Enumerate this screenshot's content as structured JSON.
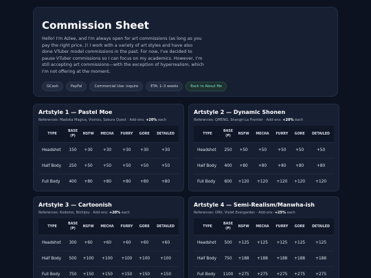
{
  "header": {
    "title": "Commission Sheet",
    "intro": "Hello! I'm Azlee, and I'm always open for art commissions (as long as you pay the right price..)! I work with a variety of art styles and have also done VTuber model commissions in the past. For now, I've decided to pause VTuber commissions so I can focus on my academics. However, I'm still accepting art commissions—with the exception of hyperrealism, which I'm not offering at the moment.",
    "tags": [
      "GCash",
      "PayPal",
      "Commercial Use: inquire",
      "ETA: 1–3 weeks"
    ],
    "back_link": "Back to About Me"
  },
  "table_columns": [
    "TYPE",
    "BASE (₱)",
    "NSFW",
    "MECHA",
    "FURRY",
    "GORE",
    "DETAILED"
  ],
  "cards": [
    {
      "title": "Artstyle 1 — Pastel Moe",
      "references": "References: Madoka Magica, Vivinos, Sakura Quest · Add-ons:",
      "addon": "+20%",
      "addon_note": "each",
      "rows": [
        [
          "Headshot",
          "150",
          "+30",
          "+30",
          "+30",
          "+30",
          "+30"
        ],
        [
          "Half Body",
          "250",
          "+50",
          "+50",
          "+50",
          "+50",
          "+50"
        ],
        [
          "Full Body",
          "400",
          "+80",
          "+80",
          "+80",
          "+80",
          "+80"
        ]
      ]
    },
    {
      "title": "Artstyle 2 — Dynamic Shonen",
      "references": "References: QMENG, Shangri-La Frontier · Add-ons:",
      "addon": "+20%",
      "addon_note": "each",
      "rows": [
        [
          "Headshot",
          "250",
          "+50",
          "+50",
          "+50",
          "+50",
          "+50"
        ],
        [
          "Half Body",
          "400",
          "+80",
          "+80",
          "+80",
          "+80",
          "+80"
        ],
        [
          "Full Body",
          "600",
          "+120",
          "+120",
          "+120",
          "+120",
          "+120"
        ]
      ]
    },
    {
      "title": "Artstyle 3 — Cartoonish",
      "references": "References: Kodomo, Nichijou · Add-ons:",
      "addon": "+20%",
      "addon_note": "each",
      "rows": [
        [
          "Headshot",
          "300",
          "+60",
          "+60",
          "+60",
          "+60",
          "+60"
        ],
        [
          "Half Body",
          "500",
          "+100",
          "+100",
          "+100",
          "+100",
          "+100"
        ],
        [
          "Full Body",
          "750",
          "+150",
          "+150",
          "+150",
          "+150",
          "+150"
        ]
      ]
    },
    {
      "title": "Artstyle 4 — Semi-Realism/Manwha-ish",
      "references": "References: ORV, Violet Evergarden · Add-ons:",
      "addon": "+25%",
      "addon_note": "each",
      "rows": [
        [
          "Headshot",
          "500",
          "+125",
          "+125",
          "+125",
          "+125",
          "+125"
        ],
        [
          "Half Body",
          "750",
          "+188",
          "+188",
          "+188",
          "+188",
          "+188"
        ],
        [
          "Full Body",
          "1100",
          "+275",
          "+275",
          "+275",
          "+275",
          "+275"
        ]
      ]
    }
  ]
}
